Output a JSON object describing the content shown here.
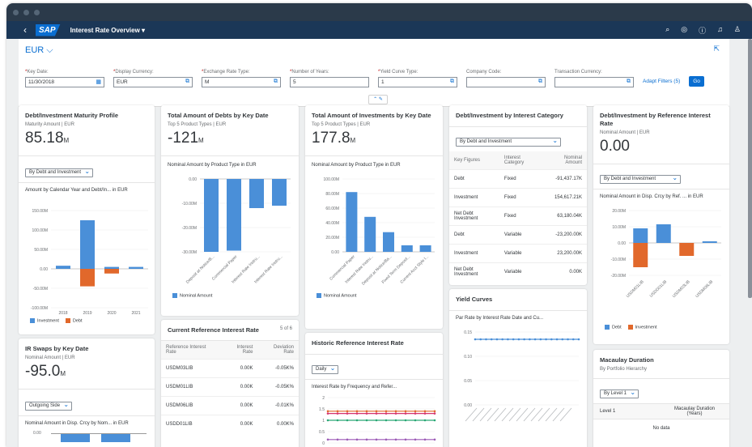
{
  "shell": {
    "back": "‹",
    "logo": "SAP",
    "title": "Interest Rate Overview ▾"
  },
  "header": {
    "currency": "EUR ⌵"
  },
  "filters": [
    {
      "label": "Key Date:",
      "required": true,
      "value": "11/30/2018",
      "icon": "calendar-icon"
    },
    {
      "label": "Display Currency:",
      "required": true,
      "value": "EUR",
      "icon": "value-help-icon"
    },
    {
      "label": "Exchange Rate Type:",
      "required": true,
      "value": "M",
      "icon": "value-help-icon"
    },
    {
      "label": "Number of Years:",
      "required": true,
      "value": "5",
      "icon": ""
    },
    {
      "label": "Yield Curve Type:",
      "required": true,
      "value": "1",
      "icon": "value-help-icon"
    },
    {
      "label": "Company Code:",
      "required": false,
      "value": "",
      "icon": "value-help-icon"
    },
    {
      "label": "Transaction Currency:",
      "required": false,
      "value": "",
      "icon": "value-help-icon"
    }
  ],
  "adapt_filters": "Adapt Filters (5)",
  "go": "Go",
  "cards": {
    "maturity": {
      "title": "Debt/Investment Maturity Profile",
      "sub": "Maturity Amount | EUR",
      "kpi": "85.18",
      "unit": "M",
      "select": "By Debt and Investment",
      "chart_title": "Amount by Calendar Year and Debt/In... in EUR"
    },
    "debts": {
      "title": "Total Amount of Debts by Key Date",
      "sub": "Top 5 Product Types | EUR",
      "kpi": "-121",
      "unit": "M",
      "chart_title": "Nominal Amount by Product Type in EUR"
    },
    "investments": {
      "title": "Total Amount of Investments by Key Date",
      "sub": "Top 5 Product Types | EUR",
      "kpi": "177.8",
      "unit": "M",
      "chart_title": "Nominal Amount by Product Type in EUR"
    },
    "category": {
      "title": "Debt/Investment by Interest Category",
      "select": "By Debt and Investment",
      "cols": [
        "Key Figures",
        "Interest Category",
        "Nominal Amount"
      ],
      "rows": [
        [
          "Debt",
          "Fixed",
          "-91,437.17K"
        ],
        [
          "Investment",
          "Fixed",
          "154,617.21K"
        ],
        [
          "Net Debt Investment",
          "Fixed",
          "63,180.04K"
        ],
        [
          "Debt",
          "Variable",
          "-23,200.00K"
        ],
        [
          "Investment",
          "Variable",
          "23,200.00K"
        ],
        [
          "Net Debt Investment",
          "Variable",
          "0.00K"
        ]
      ]
    },
    "reference": {
      "title": "Debt/Investment by Reference Interest Rate",
      "sub": "Nominal Amount | EUR",
      "kpi": "0.00",
      "select": "By Debt and Investment",
      "chart_title": "Nominal Amount in Disp. Crcy by Ref. ... in EUR"
    },
    "swaps": {
      "title": "IR Swaps by Key Date",
      "sub": "Nominal Amount | EUR",
      "kpi": "-95.0",
      "unit": "M",
      "select": "Outgoing Side",
      "chart_title": "Nominal Amount in Disp. Crcy by Nom... in EUR",
      "tick": "0.00"
    },
    "current": {
      "title": "Current Reference Interest Rate",
      "count": "5 of 6",
      "cols": [
        "Reference Interest Rate",
        "Interest Rate",
        "Deviation Rate"
      ],
      "rows": [
        [
          "USDM03LIB",
          "0.00K",
          "-0.05K%"
        ],
        [
          "USDM01LIB",
          "0.00K",
          "-0.05K%"
        ],
        [
          "USDM06LIB",
          "0.00K",
          "-0.01K%"
        ],
        [
          "USDD01LIB",
          "0.00K",
          "0.00K%"
        ]
      ]
    },
    "historic": {
      "title": "Historic Reference Interest Rate",
      "select": "Daily",
      "chart_title": "Interest Rate by Frequency and Refer..."
    },
    "yield": {
      "title": "Yield Curves",
      "chart_title": "Par Rate by Interest Rate Date and Cu..."
    },
    "macaulay": {
      "title": "Macaulay Duration",
      "sub": "By Portfolio Hierarchy",
      "select": "By Level 1",
      "cols": [
        "Level 1",
        "Macaulay Duration (Years)"
      ],
      "empty": "No data"
    }
  },
  "legend": {
    "investment": "Investment",
    "debt": "Debt",
    "nominal": "Nominal Amount"
  },
  "colors": {
    "investment": "#4a8fd8",
    "debt": "#e1682b",
    "accent": "#0a6ed1"
  },
  "chart_data": [
    {
      "type": "bar",
      "title": "Amount by Calendar Year and Debt/In... in EUR",
      "categories": [
        "2018",
        "2019",
        "2020",
        "2021"
      ],
      "series": [
        {
          "name": "Investment",
          "values": [
            8,
            125,
            5,
            5
          ]
        },
        {
          "name": "Debt",
          "values": [
            0,
            -45,
            -12,
            0
          ]
        }
      ],
      "ylim": [
        -100,
        150
      ],
      "yticks": [
        "150.00M",
        "100.00M",
        "50.00M",
        "0.00",
        "-50.00M",
        "-100.00M"
      ],
      "ytick_values": [
        150,
        100,
        50,
        0,
        -50,
        -100
      ]
    },
    {
      "type": "bar",
      "title": "Nominal Amount by Product Type in EUR",
      "categories": [
        "Deposit at Notice/B...",
        "Commercial Paper",
        "Interest Rate Instru...",
        "Interest Rate Instru..."
      ],
      "series": [
        {
          "name": "Nominal Amount",
          "values": [
            -30,
            -29.5,
            -12,
            -11
          ]
        }
      ],
      "ylim": [
        -30,
        0
      ],
      "yticks": [
        "0.00",
        "-10.00M",
        "-20.00M",
        "-30.00M"
      ],
      "ytick_values": [
        0,
        -10,
        -20,
        -30
      ]
    },
    {
      "type": "bar",
      "title": "Nominal Amount by Product Type in EUR",
      "categories": [
        "Commercial Paper",
        "Interest Rate Instru...",
        "Deposit at Notice/Ba...",
        "Fixed Term Deposit...",
        "Current Acct Style I..."
      ],
      "series": [
        {
          "name": "Nominal Amount",
          "values": [
            82,
            48,
            27,
            9,
            9
          ]
        }
      ],
      "ylim": [
        0,
        100
      ],
      "yticks": [
        "100.00M",
        "80.00M",
        "60.00M",
        "40.00M",
        "20.00M",
        "0.00"
      ],
      "ytick_values": [
        100,
        80,
        60,
        40,
        20,
        0
      ]
    },
    {
      "type": "bar",
      "title": "Nominal Amount in Disp. Crcy by Ref. ... in EUR",
      "categories": [
        "USDM01LIB",
        "USDD01LIB",
        "USDM03LIB",
        "USDM06LIB"
      ],
      "series": [
        {
          "name": "Debt",
          "values": [
            -15,
            0,
            -8,
            0
          ]
        },
        {
          "name": "Investment",
          "values": [
            9,
            11.5,
            0,
            1
          ]
        }
      ],
      "ylim": [
        -20,
        20
      ],
      "yticks": [
        "20.00M",
        "10.00M",
        "0.00",
        "-10.00M",
        "-20.00M"
      ],
      "ytick_values": [
        20,
        10,
        0,
        -10,
        -20
      ]
    },
    {
      "type": "line",
      "title": "Interest Rate by Frequency and Refer...",
      "ylim": [
        0,
        2
      ],
      "yticks": [
        "2",
        "1.5",
        "1",
        "0.5",
        "0"
      ],
      "ytick_values": [
        2,
        1.5,
        1,
        0.5,
        0
      ],
      "series": [
        {
          "values": [
            1.4,
            1.4,
            1.4,
            1.4,
            1.4,
            1.4,
            1.4,
            1.4,
            1.4,
            1.4,
            1.4,
            1.4
          ]
        },
        {
          "values": [
            1.3,
            1.3,
            1.3,
            1.3,
            1.3,
            1.3,
            1.3,
            1.3,
            1.3,
            1.3,
            1.3,
            1.3
          ]
        },
        {
          "values": [
            1.0,
            1.0,
            1.0,
            1.0,
            1.0,
            1.0,
            1.0,
            1.0,
            1.0,
            1.0,
            1.0,
            1.0
          ]
        },
        {
          "values": [
            0.15,
            0.15,
            0.15,
            0.15,
            0.15,
            0.15,
            0.15,
            0.15,
            0.15,
            0.15,
            0.15,
            0.15
          ]
        }
      ]
    },
    {
      "type": "line",
      "title": "Par Rate by Interest Rate Date and Cu...",
      "ylim": [
        0,
        0.15
      ],
      "yticks": [
        "0.15",
        "0.10",
        "0.05",
        "0.00"
      ],
      "ytick_values": [
        0.15,
        0.1,
        0.05,
        0
      ],
      "series": [
        {
          "values": [
            0.135,
            0.135,
            0.135,
            0.135,
            0.135,
            0.135,
            0.135,
            0.135,
            0.135,
            0.135,
            0.135,
            0.135,
            0.135,
            0.135,
            0.135,
            0.135,
            0.135,
            0.135,
            0.135,
            0.135
          ]
        }
      ]
    },
    {
      "type": "bar",
      "title": "Nominal Amount in Disp. Crcy by Nom... in EUR",
      "yticks": [
        "0.00"
      ],
      "series": [
        {
          "values": [
            -95
          ]
        }
      ]
    }
  ]
}
